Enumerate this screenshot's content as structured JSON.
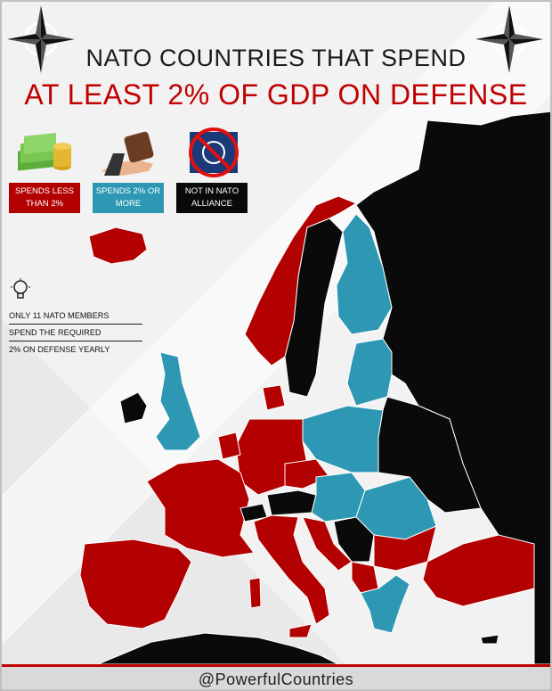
{
  "title": {
    "line1": "NATO COUNTRIES THAT SPEND",
    "line2": "AT LEAST 2% OF GDP ON DEFENSE"
  },
  "legend": {
    "items": [
      {
        "label": "SPENDS LESS THAN 2%",
        "color": "#b30000",
        "icon": "money-stack-icon"
      },
      {
        "label": "SPENDS 2% OR MORE",
        "color": "#2e98b4",
        "icon": "hand-wallet-icon"
      },
      {
        "label": "NOT IN NATO ALLIANCE",
        "color": "#0a0a0a",
        "icon": "nato-prohibited-icon"
      }
    ]
  },
  "note": {
    "icon": "lightbulb-icon",
    "lines": [
      "ONLY 11 NATO MEMBERS",
      "SPEND THE REQUIRED",
      "2% ON DEFENSE YEARLY"
    ]
  },
  "colors": {
    "less": "#b30000",
    "more": "#2e98b4",
    "non": "#0a0a0a",
    "sea": "#f2f2f2",
    "accent": "#c00000"
  },
  "footer": {
    "handle": "@PowerfulCountries"
  }
}
